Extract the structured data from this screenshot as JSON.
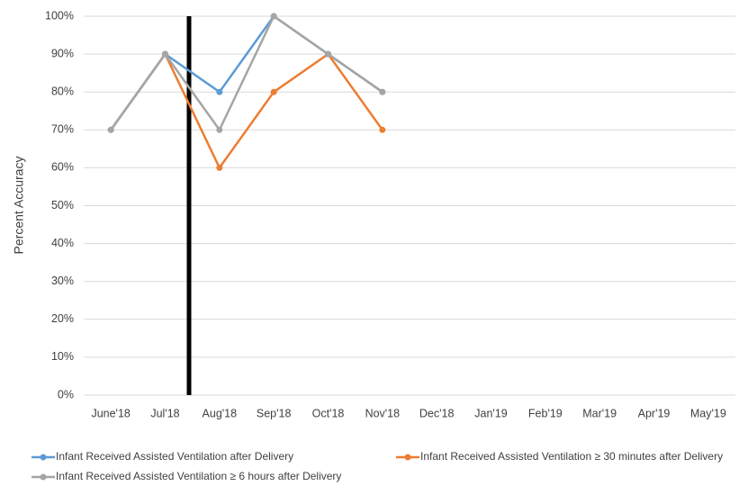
{
  "chart_data": {
    "type": "line",
    "ylabel": "Percent Accuracy",
    "categories": [
      "June'18",
      "Jul'18",
      "Aug'18",
      "Sep'18",
      "Oct'18",
      "Nov'18",
      "Dec'18",
      "Jan'19",
      "Feb'19",
      "Mar'19",
      "Apr'19",
      "May'19"
    ],
    "series": [
      {
        "name": "Infant Received Assisted Ventilation after Delivery",
        "color": "#5b9bd5",
        "values": [
          70,
          90,
          80,
          100,
          90,
          80,
          null,
          null,
          null,
          null,
          null,
          null
        ]
      },
      {
        "name": "Infant Received Assisted Ventilation ≥ 30 minutes after Delivery",
        "color": "#ed7d31",
        "values": [
          70,
          90,
          60,
          80,
          90,
          70,
          null,
          null,
          null,
          null,
          null,
          null
        ]
      },
      {
        "name": "Infant Received Assisted Ventilation ≥ 6 hours after Delivery",
        "color": "#a5a5a5",
        "values": [
          70,
          90,
          70,
          100,
          90,
          80,
          null,
          null,
          null,
          null,
          null,
          null
        ]
      }
    ],
    "ylim": [
      0,
      100
    ],
    "yticks": [
      {
        "value": 0,
        "label": "0%"
      },
      {
        "value": 10,
        "label": "10%"
      },
      {
        "value": 20,
        "label": "20%"
      },
      {
        "value": 30,
        "label": "30%"
      },
      {
        "value": 40,
        "label": "40%"
      },
      {
        "value": 50,
        "label": "50%"
      },
      {
        "value": 60,
        "label": "60%"
      },
      {
        "value": 70,
        "label": "70%"
      },
      {
        "value": 80,
        "label": "80%"
      },
      {
        "value": 90,
        "label": "90%"
      },
      {
        "value": 100,
        "label": "100%"
      }
    ],
    "grid": true
  }
}
